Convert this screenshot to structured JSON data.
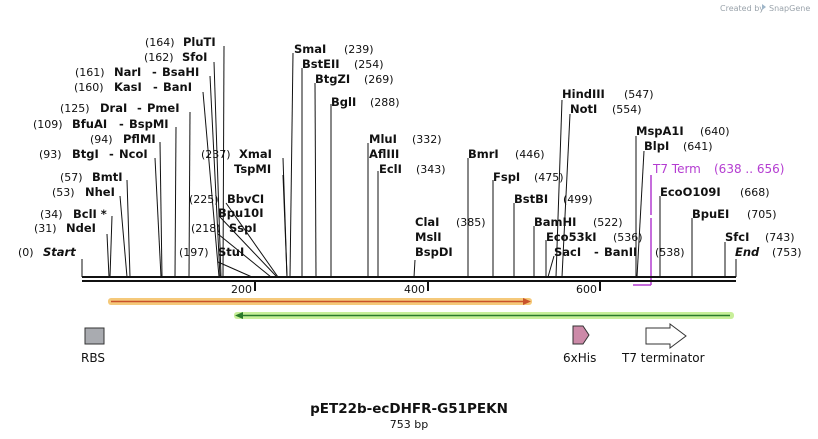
{
  "watermark": {
    "prefix": "Created by",
    "brand": "SnapGene"
  },
  "title": "pET22b-ecDHFR-G51PEKN",
  "length_label": "753 bp",
  "colors": {
    "backbone": "#111111",
    "orf1": "#c9532b",
    "orf1_glow": "#f5c97a",
    "orf2": "#2a7a2a",
    "orf2_glow": "#c8ef9a",
    "t7_term": "#b43dd1",
    "rbs": "#a9abb0",
    "his": "#cc8aa8"
  },
  "ticks": [
    {
      "label": "200"
    },
    {
      "label": "400"
    },
    {
      "label": "600"
    }
  ],
  "sites": [
    {
      "pos": "(0)",
      "name": "Start",
      "italic": true
    },
    {
      "pos": "(31)",
      "name": "NdeI"
    },
    {
      "pos": "(34)",
      "name": "BclI *"
    },
    {
      "pos": "(53)",
      "name": "NheI"
    },
    {
      "pos": "(57)",
      "name": "BmtI"
    },
    {
      "pos": "(93)",
      "name": "BtgI",
      "name2": "NcoI"
    },
    {
      "pos": "(94)",
      "name": "PflMI"
    },
    {
      "pos": "(109)",
      "name": "BfuAI",
      "name2": "BspMI"
    },
    {
      "pos": "(125)",
      "name": "DraI",
      "name2": "PmeI"
    },
    {
      "pos": "(160)",
      "name": "KasI",
      "name2": "BanI"
    },
    {
      "pos": "(161)",
      "name": "NarI",
      "name2": "BsaHI"
    },
    {
      "pos": "(162)",
      "name": "SfoI"
    },
    {
      "pos": "(164)",
      "name": "PluTI"
    },
    {
      "pos": "(197)",
      "name": "StuI"
    },
    {
      "pos": "(218)",
      "name": "SspI"
    },
    {
      "pos": "(225)",
      "name": "Bpu10I"
    },
    {
      "pos": "(225)",
      "name": "BbvCI"
    },
    {
      "pos": "(237)",
      "name": "XmaI"
    },
    {
      "pos": "",
      "name": "TspMI"
    },
    {
      "pos": "(239)",
      "name": "SmaI"
    },
    {
      "pos": "(254)",
      "name": "BstEII"
    },
    {
      "pos": "(269)",
      "name": "BtgZI"
    },
    {
      "pos": "(288)",
      "name": "BglI"
    },
    {
      "pos": "(332)",
      "name": "MluI"
    },
    {
      "pos": "",
      "name": "AflIII"
    },
    {
      "pos": "(343)",
      "name": "EclI"
    },
    {
      "pos": "(385)",
      "name": "ClaI"
    },
    {
      "pos": "",
      "name": "MslI"
    },
    {
      "pos": "",
      "name": "BspDI"
    },
    {
      "pos": "(446)",
      "name": "BmrI"
    },
    {
      "pos": "(475)",
      "name": "FspI"
    },
    {
      "pos": "(499)",
      "name": "BstBI"
    },
    {
      "pos": "(522)",
      "name": "BamHI"
    },
    {
      "pos": "(536)",
      "name": "Eco53kI"
    },
    {
      "pos": "(538)",
      "name": "SacI",
      "name2": "BanII"
    },
    {
      "pos": "(547)",
      "name": "HindIII"
    },
    {
      "pos": "(554)",
      "name": "NotI"
    },
    {
      "pos": "(640)",
      "name": "MspA1I"
    },
    {
      "pos": "(641)",
      "name": "BlpI"
    },
    {
      "pos": "(668)",
      "name": "EcoO109I"
    },
    {
      "pos": "(705)",
      "name": "BpuEI"
    },
    {
      "pos": "(743)",
      "name": "SfcI"
    },
    {
      "pos": "(753)",
      "name": "End",
      "italic": true
    }
  ],
  "t7_term_label": {
    "name": "T7 Term",
    "range": "(638 .. 656)"
  },
  "features": [
    {
      "name": "RBS"
    },
    {
      "name": "6xHis"
    },
    {
      "name": "T7 terminator"
    }
  ]
}
